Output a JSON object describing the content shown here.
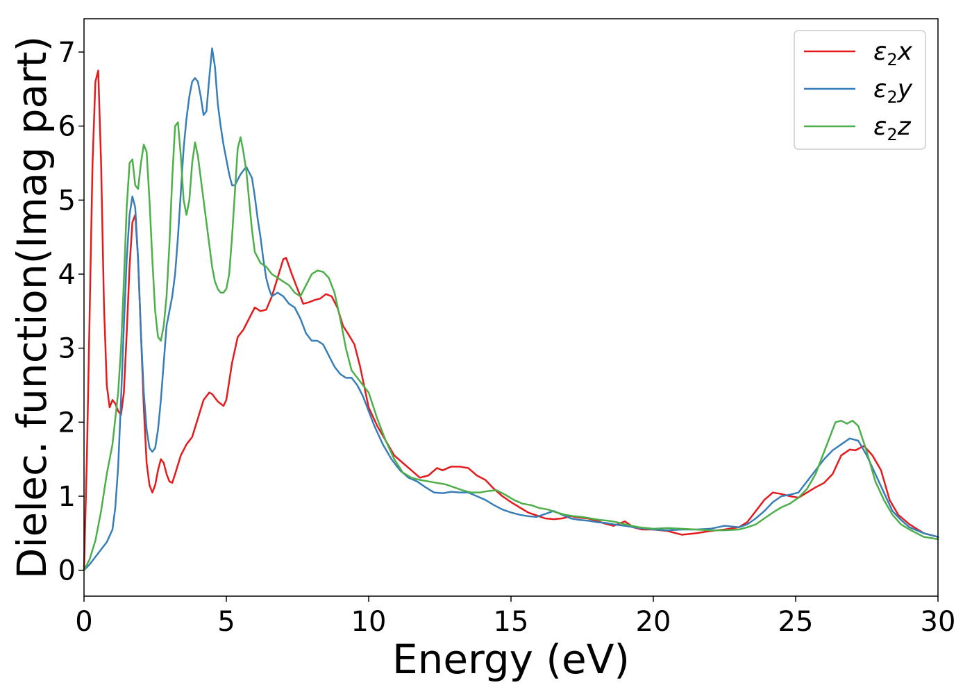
{
  "chart_data": {
    "type": "line",
    "title": "",
    "xlabel": "Energy (eV)",
    "ylabel": "Dielec. function(Imag part)",
    "xlim": [
      0,
      30
    ],
    "ylim": [
      -0.35,
      7.45
    ],
    "xticks": [
      0,
      5,
      10,
      15,
      20,
      25,
      30
    ],
    "yticks": [
      0,
      1,
      2,
      3,
      4,
      5,
      6,
      7
    ],
    "grid": false,
    "legend_position": "top-right",
    "series": [
      {
        "name": "ε₂x",
        "legend_main": "ε",
        "legend_sub": "2",
        "legend_var": "x",
        "color": "#e41a1c",
        "x": [
          0,
          0.1,
          0.2,
          0.3,
          0.4,
          0.5,
          0.6,
          0.7,
          0.8,
          0.9,
          1.0,
          1.1,
          1.2,
          1.3,
          1.4,
          1.5,
          1.6,
          1.7,
          1.8,
          1.9,
          2.0,
          2.1,
          2.2,
          2.3,
          2.4,
          2.5,
          2.6,
          2.7,
          2.8,
          2.9,
          3.0,
          3.1,
          3.2,
          3.4,
          3.6,
          3.8,
          4.0,
          4.2,
          4.4,
          4.5,
          4.7,
          4.9,
          5.0,
          5.2,
          5.4,
          5.6,
          5.8,
          6.0,
          6.2,
          6.4,
          6.6,
          6.8,
          7.0,
          7.1,
          7.3,
          7.5,
          7.7,
          7.9,
          8.1,
          8.3,
          8.5,
          8.7,
          8.9,
          9.1,
          9.3,
          9.5,
          9.7,
          10.0,
          10.3,
          10.6,
          10.9,
          11.2,
          11.5,
          11.8,
          12.1,
          12.4,
          12.6,
          12.9,
          13.2,
          13.5,
          13.8,
          14.1,
          14.4,
          14.7,
          15.0,
          15.3,
          15.6,
          15.9,
          16.2,
          16.5,
          16.8,
          17.1,
          17.4,
          17.7,
          18.0,
          18.3,
          18.6,
          19.0,
          19.3,
          19.6,
          20.0,
          20.5,
          21.0,
          21.5,
          22.0,
          22.5,
          23.0,
          23.3,
          23.6,
          23.9,
          24.2,
          24.5,
          24.8,
          25.1,
          25.4,
          25.7,
          26.0,
          26.3,
          26.6,
          26.9,
          27.1,
          27.4,
          27.7,
          28.0,
          28.3,
          28.6,
          29.0,
          29.5,
          30.0
        ],
        "y": [
          0.0,
          1.5,
          3.5,
          5.5,
          6.6,
          6.75,
          5.5,
          3.6,
          2.5,
          2.2,
          2.3,
          2.25,
          2.15,
          2.1,
          2.4,
          3.2,
          4.1,
          4.7,
          4.8,
          4.2,
          3.2,
          2.2,
          1.45,
          1.15,
          1.05,
          1.15,
          1.35,
          1.5,
          1.45,
          1.3,
          1.2,
          1.18,
          1.3,
          1.55,
          1.7,
          1.8,
          2.05,
          2.3,
          2.4,
          2.38,
          2.28,
          2.22,
          2.3,
          2.8,
          3.15,
          3.25,
          3.4,
          3.55,
          3.5,
          3.52,
          3.7,
          3.95,
          4.2,
          4.22,
          4.0,
          3.8,
          3.6,
          3.62,
          3.65,
          3.67,
          3.73,
          3.7,
          3.55,
          3.3,
          3.18,
          3.05,
          2.75,
          2.2,
          1.95,
          1.75,
          1.55,
          1.45,
          1.35,
          1.25,
          1.28,
          1.38,
          1.35,
          1.4,
          1.4,
          1.38,
          1.28,
          1.22,
          1.1,
          1.0,
          0.92,
          0.85,
          0.78,
          0.74,
          0.7,
          0.69,
          0.7,
          0.73,
          0.71,
          0.7,
          0.67,
          0.63,
          0.6,
          0.66,
          0.58,
          0.55,
          0.55,
          0.53,
          0.48,
          0.5,
          0.53,
          0.55,
          0.58,
          0.65,
          0.8,
          0.95,
          1.05,
          1.03,
          1.0,
          0.98,
          1.05,
          1.12,
          1.18,
          1.3,
          1.55,
          1.63,
          1.62,
          1.68,
          1.55,
          1.35,
          0.95,
          0.75,
          0.62,
          0.5,
          0.45
        ]
      },
      {
        "name": "ε₂y",
        "legend_main": "ε",
        "legend_sub": "2",
        "legend_var": "y",
        "color": "#377eb8",
        "x": [
          0,
          0.2,
          0.4,
          0.6,
          0.8,
          1.0,
          1.1,
          1.2,
          1.3,
          1.4,
          1.5,
          1.6,
          1.7,
          1.8,
          1.9,
          2.0,
          2.1,
          2.2,
          2.3,
          2.4,
          2.5,
          2.6,
          2.7,
          2.8,
          2.9,
          3.0,
          3.1,
          3.2,
          3.3,
          3.4,
          3.5,
          3.6,
          3.7,
          3.8,
          3.9,
          4.0,
          4.1,
          4.2,
          4.3,
          4.4,
          4.5,
          4.6,
          4.7,
          4.8,
          4.9,
          5.0,
          5.1,
          5.2,
          5.3,
          5.5,
          5.7,
          5.9,
          6.0,
          6.1,
          6.2,
          6.3,
          6.4,
          6.5,
          6.6,
          6.8,
          7.0,
          7.2,
          7.4,
          7.6,
          7.8,
          8.0,
          8.2,
          8.4,
          8.6,
          8.8,
          9.0,
          9.2,
          9.4,
          9.6,
          9.8,
          10.0,
          10.2,
          10.5,
          10.8,
          11.1,
          11.4,
          11.7,
          12.0,
          12.3,
          12.6,
          12.9,
          13.2,
          13.5,
          13.8,
          14.1,
          14.4,
          14.7,
          15.0,
          15.3,
          15.6,
          15.9,
          16.2,
          16.5,
          16.8,
          17.1,
          17.4,
          17.7,
          18.0,
          18.3,
          18.6,
          19.0,
          19.5,
          20.0,
          20.5,
          21.0,
          21.5,
          22.0,
          22.5,
          23.0,
          23.3,
          23.6,
          23.9,
          24.2,
          24.5,
          24.8,
          25.1,
          25.4,
          25.7,
          26.0,
          26.3,
          26.6,
          26.9,
          27.2,
          27.5,
          27.8,
          28.1,
          28.4,
          28.7,
          29.0,
          29.5,
          30.0
        ],
        "y": [
          0.0,
          0.08,
          0.18,
          0.28,
          0.38,
          0.55,
          0.85,
          1.4,
          2.3,
          3.3,
          4.2,
          4.8,
          5.05,
          4.9,
          4.2,
          3.2,
          2.4,
          1.9,
          1.65,
          1.6,
          1.65,
          1.9,
          2.3,
          2.8,
          3.3,
          3.5,
          3.7,
          4.0,
          4.5,
          5.1,
          5.7,
          6.1,
          6.4,
          6.6,
          6.65,
          6.6,
          6.4,
          6.15,
          6.2,
          6.65,
          7.05,
          6.8,
          6.3,
          6.0,
          5.75,
          5.55,
          5.35,
          5.2,
          5.2,
          5.35,
          5.45,
          5.3,
          5.05,
          4.75,
          4.5,
          4.2,
          3.95,
          3.8,
          3.7,
          3.75,
          3.7,
          3.6,
          3.55,
          3.4,
          3.2,
          3.1,
          3.1,
          3.05,
          2.9,
          2.75,
          2.65,
          2.6,
          2.6,
          2.5,
          2.35,
          2.15,
          1.95,
          1.7,
          1.5,
          1.35,
          1.25,
          1.2,
          1.12,
          1.05,
          1.04,
          1.06,
          1.05,
          1.05,
          1.0,
          0.95,
          0.88,
          0.82,
          0.78,
          0.75,
          0.73,
          0.72,
          0.76,
          0.8,
          0.75,
          0.7,
          0.68,
          0.67,
          0.65,
          0.64,
          0.62,
          0.6,
          0.57,
          0.55,
          0.54,
          0.55,
          0.55,
          0.56,
          0.6,
          0.58,
          0.62,
          0.7,
          0.8,
          0.92,
          1.0,
          1.02,
          1.05,
          1.2,
          1.35,
          1.5,
          1.62,
          1.7,
          1.78,
          1.75,
          1.55,
          1.3,
          1.05,
          0.8,
          0.68,
          0.58,
          0.5,
          0.45
        ]
      },
      {
        "name": "ε₂z",
        "legend_main": "ε",
        "legend_sub": "2",
        "legend_var": "z",
        "color": "#4daf4a",
        "x": [
          0,
          0.2,
          0.4,
          0.6,
          0.8,
          1.0,
          1.2,
          1.3,
          1.4,
          1.5,
          1.6,
          1.7,
          1.8,
          1.9,
          2.0,
          2.1,
          2.2,
          2.3,
          2.4,
          2.5,
          2.6,
          2.7,
          2.8,
          2.9,
          3.0,
          3.1,
          3.2,
          3.3,
          3.4,
          3.5,
          3.6,
          3.7,
          3.8,
          3.9,
          4.0,
          4.1,
          4.2,
          4.3,
          4.4,
          4.5,
          4.6,
          4.7,
          4.8,
          4.9,
          5.0,
          5.1,
          5.2,
          5.3,
          5.4,
          5.5,
          5.6,
          5.7,
          5.8,
          5.9,
          6.0,
          6.2,
          6.4,
          6.6,
          6.8,
          7.0,
          7.2,
          7.4,
          7.6,
          7.8,
          8.0,
          8.2,
          8.4,
          8.6,
          8.8,
          9.0,
          9.2,
          9.4,
          9.6,
          9.8,
          10.0,
          10.3,
          10.6,
          10.9,
          11.2,
          11.5,
          11.8,
          12.1,
          12.4,
          12.7,
          13.0,
          13.3,
          13.6,
          13.9,
          14.2,
          14.5,
          14.8,
          15.1,
          15.4,
          15.7,
          16.0,
          16.3,
          16.6,
          16.9,
          17.2,
          17.5,
          17.8,
          18.1,
          18.4,
          18.7,
          19.0,
          19.5,
          20.0,
          20.5,
          21.0,
          21.5,
          22.0,
          22.5,
          23.0,
          23.3,
          23.6,
          23.9,
          24.2,
          24.5,
          24.8,
          25.1,
          25.4,
          25.7,
          26.0,
          26.2,
          26.4,
          26.6,
          26.8,
          27.0,
          27.2,
          27.5,
          27.8,
          28.1,
          28.4,
          28.7,
          29.0,
          29.5,
          30.0
        ],
        "y": [
          0.0,
          0.15,
          0.4,
          0.8,
          1.3,
          1.7,
          2.4,
          3.0,
          3.9,
          4.9,
          5.5,
          5.55,
          5.2,
          5.15,
          5.5,
          5.75,
          5.65,
          5.0,
          4.2,
          3.5,
          3.15,
          3.1,
          3.3,
          3.7,
          4.4,
          5.3,
          6.0,
          6.05,
          5.6,
          5.0,
          4.8,
          5.0,
          5.5,
          5.78,
          5.6,
          5.3,
          5.0,
          4.7,
          4.4,
          4.1,
          3.9,
          3.8,
          3.75,
          3.75,
          3.8,
          4.0,
          4.5,
          5.1,
          5.7,
          5.85,
          5.65,
          5.4,
          5.0,
          4.6,
          4.3,
          4.15,
          4.1,
          4.0,
          3.95,
          3.9,
          3.85,
          3.75,
          3.7,
          3.85,
          4.0,
          4.05,
          4.03,
          3.95,
          3.75,
          3.4,
          3.0,
          2.7,
          2.6,
          2.5,
          2.4,
          2.05,
          1.75,
          1.5,
          1.32,
          1.25,
          1.22,
          1.2,
          1.18,
          1.16,
          1.12,
          1.08,
          1.05,
          1.05,
          1.07,
          1.08,
          1.02,
          0.95,
          0.9,
          0.88,
          0.84,
          0.82,
          0.78,
          0.75,
          0.73,
          0.72,
          0.7,
          0.68,
          0.67,
          0.65,
          0.62,
          0.58,
          0.56,
          0.57,
          0.56,
          0.55,
          0.54,
          0.54,
          0.55,
          0.58,
          0.62,
          0.7,
          0.78,
          0.85,
          0.9,
          0.98,
          1.1,
          1.3,
          1.6,
          1.8,
          2.0,
          2.02,
          1.98,
          2.02,
          1.95,
          1.6,
          1.2,
          0.95,
          0.75,
          0.62,
          0.55,
          0.45,
          0.42
        ]
      }
    ]
  }
}
